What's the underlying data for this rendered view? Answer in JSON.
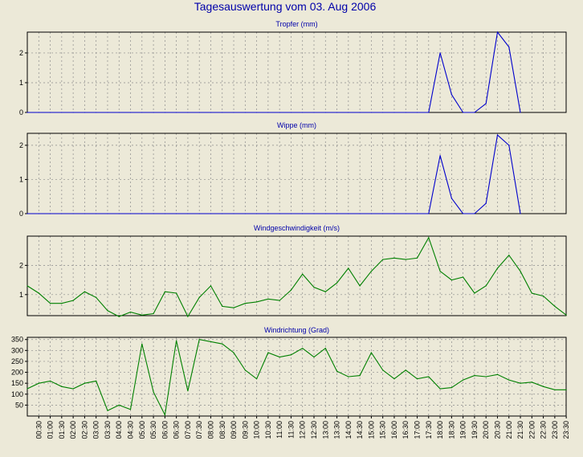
{
  "title": "Tagesauswertung vom 03. Aug 2006",
  "colors": {
    "background": "#ECE9D8",
    "rain": "#0000CC",
    "wind": "#008000",
    "title": "#0000AA"
  },
  "chart_data": [
    {
      "type": "line",
      "title": "Tropfer (mm)",
      "x": [
        "00:00",
        "00:30",
        "01:00",
        "01:30",
        "02:00",
        "02:30",
        "03:00",
        "03:30",
        "04:00",
        "04:30",
        "05:00",
        "05:30",
        "06:00",
        "06:30",
        "07:00",
        "07:30",
        "08:00",
        "08:30",
        "09:00",
        "09:30",
        "10:00",
        "10:30",
        "11:00",
        "11:30",
        "12:00",
        "12:30",
        "13:00",
        "13:30",
        "14:00",
        "14:30",
        "15:00",
        "15:30",
        "16:00",
        "16:30",
        "17:00",
        "17:30",
        "18:00",
        "18:30",
        "19:00",
        "19:30",
        "20:00",
        "20:30",
        "21:00",
        "21:30"
      ],
      "values": [
        0,
        0,
        0,
        0,
        0,
        0,
        0,
        0,
        0,
        0,
        0,
        0,
        0,
        0,
        0,
        0,
        0,
        0,
        0,
        0,
        0,
        0,
        0,
        0,
        0,
        0,
        0,
        0,
        0,
        0,
        0,
        0,
        0,
        0,
        0,
        0,
        2.0,
        0.6,
        0,
        0,
        0.3,
        2.7,
        2.2,
        0
      ],
      "ylim": [
        0,
        2.7
      ],
      "yticks": [
        0,
        1,
        2
      ],
      "color": "#0000CC",
      "grid": true
    },
    {
      "type": "line",
      "title": "Wippe (mm)",
      "x": [
        "00:00",
        "00:30",
        "01:00",
        "01:30",
        "02:00",
        "02:30",
        "03:00",
        "03:30",
        "04:00",
        "04:30",
        "05:00",
        "05:30",
        "06:00",
        "06:30",
        "07:00",
        "07:30",
        "08:00",
        "08:30",
        "09:00",
        "09:30",
        "10:00",
        "10:30",
        "11:00",
        "11:30",
        "12:00",
        "12:30",
        "13:00",
        "13:30",
        "14:00",
        "14:30",
        "15:00",
        "15:30",
        "16:00",
        "16:30",
        "17:00",
        "17:30",
        "18:00",
        "18:30",
        "19:00",
        "19:30",
        "20:00",
        "20:30",
        "21:00",
        "21:30"
      ],
      "values": [
        0,
        0,
        0,
        0,
        0,
        0,
        0,
        0,
        0,
        0,
        0,
        0,
        0,
        0,
        0,
        0,
        0,
        0,
        0,
        0,
        0,
        0,
        0,
        0,
        0,
        0,
        0,
        0,
        0,
        0,
        0,
        0,
        0,
        0,
        0,
        0,
        1.7,
        0.45,
        0,
        0,
        0.3,
        2.3,
        2.0,
        0
      ],
      "ylim": [
        0,
        2.35
      ],
      "yticks": [
        0,
        1,
        2
      ],
      "color": "#0000CC",
      "grid": true
    },
    {
      "type": "line",
      "title": "Windgeschwindigkeit (m/s)",
      "x": [
        "00:00",
        "00:30",
        "01:00",
        "01:30",
        "02:00",
        "02:30",
        "03:00",
        "03:30",
        "04:00",
        "04:30",
        "05:00",
        "05:30",
        "06:00",
        "06:30",
        "07:00",
        "07:30",
        "08:00",
        "08:30",
        "09:00",
        "09:30",
        "10:00",
        "10:30",
        "11:00",
        "11:30",
        "12:00",
        "12:30",
        "13:00",
        "13:30",
        "14:00",
        "14:30",
        "15:00",
        "15:30",
        "16:00",
        "16:30",
        "17:00",
        "17:30",
        "18:00",
        "18:30",
        "19:00",
        "19:30",
        "20:00",
        "20:30",
        "21:00",
        "21:30",
        "22:00",
        "22:30",
        "23:00",
        "23:30"
      ],
      "values": [
        1.3,
        1.05,
        0.7,
        0.7,
        0.8,
        1.1,
        0.9,
        0.45,
        0.25,
        0.4,
        0.3,
        0.35,
        1.1,
        1.05,
        0.25,
        0.9,
        1.3,
        0.6,
        0.55,
        0.7,
        0.75,
        0.85,
        0.8,
        1.15,
        1.7,
        1.25,
        1.1,
        1.4,
        1.9,
        1.3,
        1.8,
        2.2,
        2.25,
        2.2,
        2.25,
        2.95,
        1.8,
        1.5,
        1.6,
        1.05,
        1.3,
        1.9,
        2.35,
        1.8,
        1.05,
        0.95,
        0.6,
        0.3
      ],
      "ylim": [
        0.28,
        3.0
      ],
      "yticks": [
        1,
        2
      ],
      "color": "#008000",
      "grid": true
    },
    {
      "type": "line",
      "title": "Windrichtung (Grad)",
      "x": [
        "00:00",
        "00:30",
        "01:00",
        "01:30",
        "02:00",
        "02:30",
        "03:00",
        "03:30",
        "04:00",
        "04:30",
        "05:00",
        "05:30",
        "06:00",
        "06:30",
        "07:00",
        "07:30",
        "08:00",
        "08:30",
        "09:00",
        "09:30",
        "10:00",
        "10:30",
        "11:00",
        "11:30",
        "12:00",
        "12:30",
        "13:00",
        "13:30",
        "14:00",
        "14:30",
        "15:00",
        "15:30",
        "16:00",
        "16:30",
        "17:00",
        "17:30",
        "18:00",
        "18:30",
        "19:00",
        "19:30",
        "20:00",
        "20:30",
        "21:00",
        "21:30",
        "22:00",
        "22:30",
        "23:00",
        "23:30"
      ],
      "values": [
        125,
        150,
        160,
        135,
        125,
        150,
        160,
        25,
        50,
        30,
        330,
        110,
        5,
        345,
        115,
        350,
        340,
        330,
        290,
        210,
        170,
        290,
        270,
        280,
        310,
        270,
        310,
        205,
        180,
        185,
        290,
        210,
        170,
        210,
        170,
        180,
        125,
        130,
        165,
        185,
        180,
        190,
        165,
        150,
        155,
        135,
        120,
        120
      ],
      "ylim": [
        0,
        360
      ],
      "yticks": [
        50,
        100,
        150,
        200,
        250,
        300,
        350
      ],
      "color": "#008000",
      "grid": true
    }
  ],
  "x_axis_labels": [
    "00:30",
    "01:00",
    "01:30",
    "02:00",
    "02:30",
    "03:00",
    "03:30",
    "04:00",
    "04:30",
    "05:00",
    "05:30",
    "06:00",
    "06:30",
    "07:00",
    "07:30",
    "08:00",
    "08:30",
    "09:00",
    "09:30",
    "10:00",
    "10:30",
    "11:00",
    "11:30",
    "12:00",
    "12:30",
    "13:00",
    "13:30",
    "14:00",
    "14:30",
    "15:00",
    "15:30",
    "16:00",
    "16:30",
    "17:00",
    "17:30",
    "18:00",
    "18:30",
    "19:00",
    "19:30",
    "20:00",
    "20:30",
    "21:00",
    "21:30",
    "22:00",
    "22:30",
    "23:00",
    "23:30"
  ]
}
